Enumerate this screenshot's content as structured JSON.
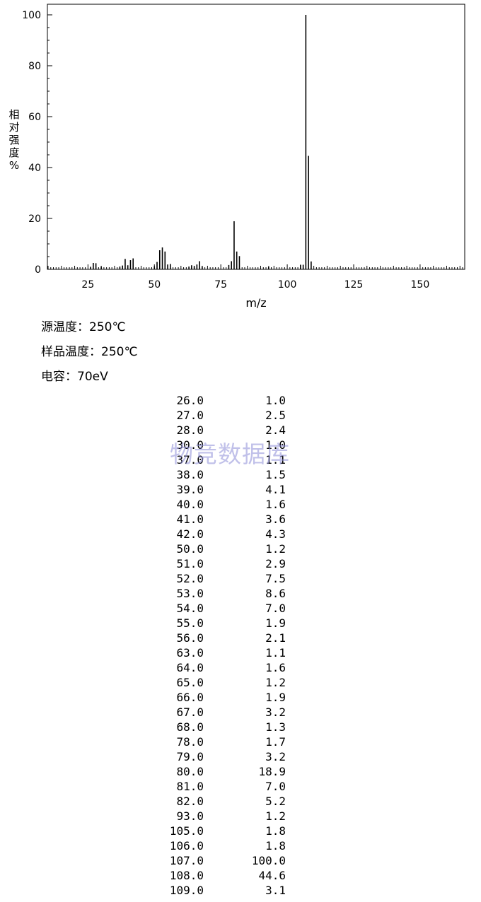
{
  "chart_data": {
    "type": "bar",
    "xlabel": "m/z",
    "ylabel": "相对强度%",
    "ylabel_chars": [
      "相",
      "对",
      "强",
      "度",
      "%"
    ],
    "xlim": [
      10,
      166
    ],
    "ylim": [
      0,
      104
    ],
    "xticks": [
      25,
      50,
      75,
      100,
      125,
      150
    ],
    "yticks": [
      0,
      20,
      40,
      60,
      80,
      100
    ],
    "x": [
      26.0,
      27.0,
      28.0,
      30.0,
      37.0,
      38.0,
      39.0,
      40.0,
      41.0,
      42.0,
      50.0,
      51.0,
      52.0,
      53.0,
      54.0,
      55.0,
      56.0,
      63.0,
      64.0,
      65.0,
      66.0,
      67.0,
      68.0,
      78.0,
      79.0,
      80.0,
      81.0,
      82.0,
      93.0,
      105.0,
      106.0,
      107.0,
      108.0,
      109.0
    ],
    "values": [
      1.0,
      2.5,
      2.4,
      1.0,
      1.1,
      1.5,
      4.1,
      1.6,
      3.6,
      4.3,
      1.2,
      2.9,
      7.5,
      8.6,
      7.0,
      1.9,
      2.1,
      1.1,
      1.6,
      1.2,
      1.9,
      3.2,
      1.3,
      1.7,
      3.2,
      18.9,
      7.0,
      5.2,
      1.2,
      1.8,
      1.8,
      100.0,
      44.6,
      3.1
    ]
  },
  "conditions": {
    "source_temp": "源温度：250℃",
    "sample_temp": "样品温度：250℃",
    "voltage": "电容：70eV"
  },
  "table": {
    "rows": [
      [
        "26.0",
        "1.0"
      ],
      [
        "27.0",
        "2.5"
      ],
      [
        "28.0",
        "2.4"
      ],
      [
        "30.0",
        "1.0"
      ],
      [
        "37.0",
        "1.1"
      ],
      [
        "38.0",
        "1.5"
      ],
      [
        "39.0",
        "4.1"
      ],
      [
        "40.0",
        "1.6"
      ],
      [
        "41.0",
        "3.6"
      ],
      [
        "42.0",
        "4.3"
      ],
      [
        "50.0",
        "1.2"
      ],
      [
        "51.0",
        "2.9"
      ],
      [
        "52.0",
        "7.5"
      ],
      [
        "53.0",
        "8.6"
      ],
      [
        "54.0",
        "7.0"
      ],
      [
        "55.0",
        "1.9"
      ],
      [
        "56.0",
        "2.1"
      ],
      [
        "63.0",
        "1.1"
      ],
      [
        "64.0",
        "1.6"
      ],
      [
        "65.0",
        "1.2"
      ],
      [
        "66.0",
        "1.9"
      ],
      [
        "67.0",
        "3.2"
      ],
      [
        "68.0",
        "1.3"
      ],
      [
        "78.0",
        "1.7"
      ],
      [
        "79.0",
        "3.2"
      ],
      [
        "80.0",
        "18.9"
      ],
      [
        "81.0",
        "7.0"
      ],
      [
        "82.0",
        "5.2"
      ],
      [
        "93.0",
        "1.2"
      ],
      [
        "105.0",
        "1.8"
      ],
      [
        "106.0",
        "1.8"
      ],
      [
        "107.0",
        "100.0"
      ],
      [
        "108.0",
        "44.6"
      ],
      [
        "109.0",
        "3.1"
      ]
    ]
  },
  "watermark": "物竞数据库"
}
